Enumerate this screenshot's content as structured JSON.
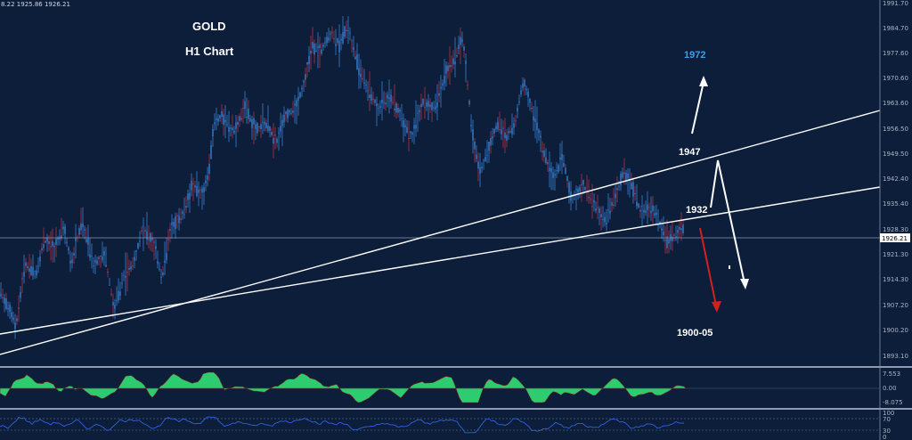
{
  "header": {
    "ohlc_text": "8.22 1925.86 1926.21"
  },
  "title": "GOLD",
  "subtitle": "H1 Chart",
  "colors": {
    "background": "#0d1e3a",
    "candle": "#3a7fd0",
    "wick_red": "#b03040",
    "trendline": "#ffffff",
    "forecast_up": "#ffffff",
    "forecast_down": "#d02020",
    "target_label": "#3a9ff0",
    "macd_fill": "#2ecc71"
  },
  "price_axis": {
    "labels": [
      "1991.70",
      "1984.70",
      "1977.60",
      "1970.60",
      "1963.60",
      "1956.50",
      "1949.50",
      "1942.40",
      "1935.40",
      "1928.30",
      "1921.30",
      "1914.30",
      "1907.20",
      "1900.20",
      "1893.10"
    ],
    "current_price": "1926.21"
  },
  "annotations": {
    "target_1972": "1972",
    "level_1947": "1947",
    "level_1932": "1932",
    "target_1900": "1900-05"
  },
  "macd_axis": {
    "labels": [
      "7.553",
      "0.00",
      "-8.075"
    ]
  },
  "rsi_axis": {
    "labels": [
      "100",
      "70",
      "30",
      "0"
    ]
  },
  "chart_data": {
    "type": "candlestick",
    "ylim": [
      1889,
      1993
    ],
    "path": [
      [
        0,
        1910
      ],
      [
        10,
        1905
      ],
      [
        18,
        1900
      ],
      [
        28,
        1918
      ],
      [
        40,
        1915
      ],
      [
        50,
        1925
      ],
      [
        60,
        1922
      ],
      [
        72,
        1928
      ],
      [
        80,
        1918
      ],
      [
        92,
        1930
      ],
      [
        105,
        1918
      ],
      [
        118,
        1920
      ],
      [
        128,
        1905
      ],
      [
        140,
        1915
      ],
      [
        150,
        1918
      ],
      [
        160,
        1928
      ],
      [
        172,
        1924
      ],
      [
        182,
        1914
      ],
      [
        192,
        1928
      ],
      [
        205,
        1932
      ],
      [
        215,
        1940
      ],
      [
        228,
        1938
      ],
      [
        235,
        1945
      ],
      [
        240,
        1958
      ],
      [
        250,
        1960
      ],
      [
        262,
        1955
      ],
      [
        275,
        1962
      ],
      [
        288,
        1956
      ],
      [
        300,
        1958
      ],
      [
        310,
        1952
      ],
      [
        320,
        1960
      ],
      [
        332,
        1962
      ],
      [
        342,
        1970
      ],
      [
        350,
        1980
      ],
      [
        360,
        1978
      ],
      [
        372,
        1984
      ],
      [
        382,
        1980
      ],
      [
        390,
        1986
      ],
      [
        400,
        1976
      ],
      [
        412,
        1968
      ],
      [
        425,
        1962
      ],
      [
        438,
        1966
      ],
      [
        450,
        1960
      ],
      [
        462,
        1954
      ],
      [
        475,
        1964
      ],
      [
        488,
        1962
      ],
      [
        500,
        1972
      ],
      [
        510,
        1976
      ],
      [
        520,
        1982
      ],
      [
        530,
        1956
      ],
      [
        538,
        1944
      ],
      [
        548,
        1950
      ],
      [
        558,
        1958
      ],
      [
        568,
        1954
      ],
      [
        578,
        1958
      ],
      [
        588,
        1970
      ],
      [
        600,
        1960
      ],
      [
        612,
        1948
      ],
      [
        622,
        1942
      ],
      [
        632,
        1948
      ],
      [
        642,
        1936
      ],
      [
        655,
        1940
      ],
      [
        668,
        1934
      ],
      [
        680,
        1930
      ],
      [
        692,
        1938
      ],
      [
        700,
        1944
      ],
      [
        710,
        1940
      ],
      [
        720,
        1932
      ],
      [
        730,
        1934
      ],
      [
        740,
        1930
      ],
      [
        748,
        1924
      ],
      [
        758,
        1926
      ],
      [
        768,
        1928
      ]
    ]
  }
}
